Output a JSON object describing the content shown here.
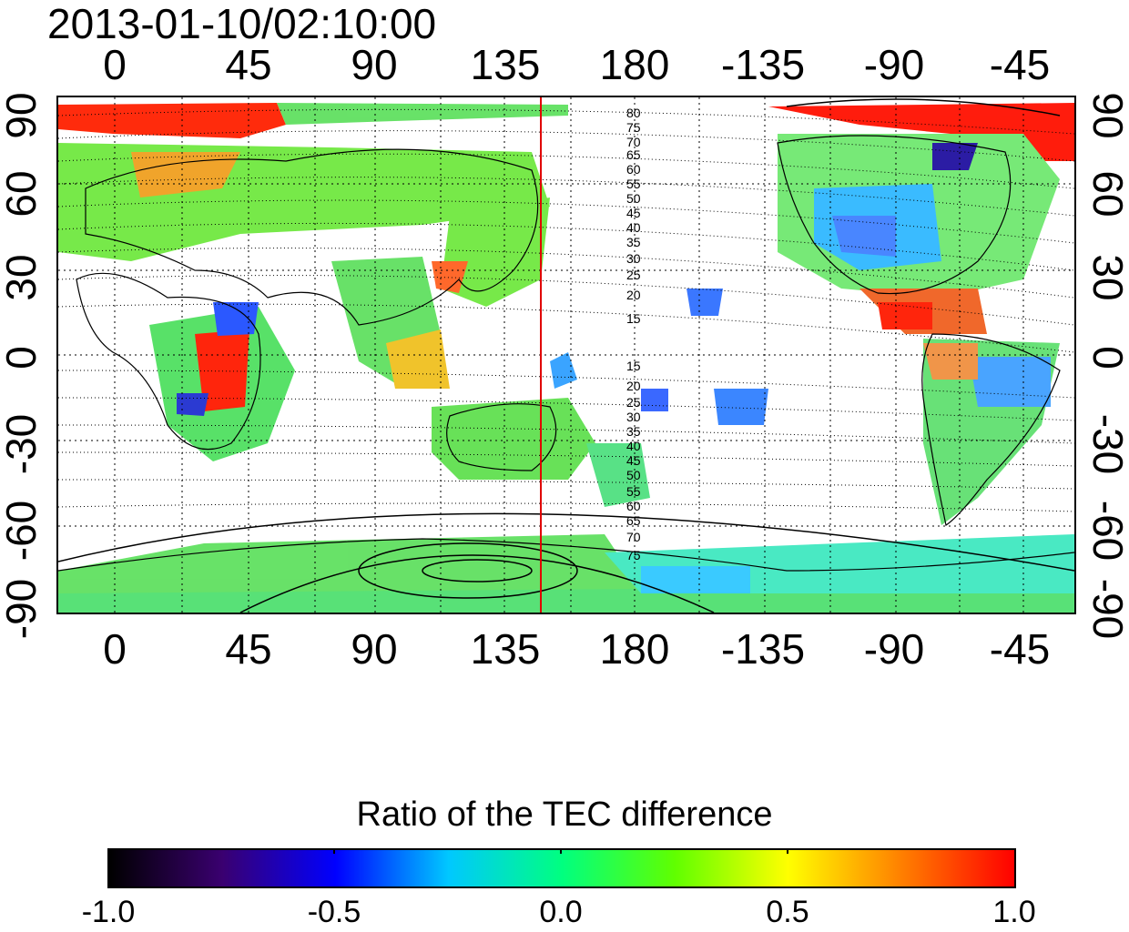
{
  "title": "2013-01-10/02:10:00",
  "axes": {
    "longitude_ticks": [
      "0",
      "45",
      "90",
      "135",
      "180",
      "-135",
      "-90",
      "-45"
    ],
    "latitude_ticks": [
      "90",
      "60",
      "30",
      "0",
      "-30",
      "-60",
      "-90"
    ]
  },
  "map": {
    "contour_labels_upper": [
      "80",
      "75",
      "70",
      "65",
      "60",
      "55",
      "50",
      "45",
      "40",
      "35",
      "30",
      "25",
      "20",
      "15"
    ],
    "contour_labels_lower": [
      "15",
      "20",
      "25",
      "30",
      "35",
      "40",
      "45",
      "50",
      "55",
      "60",
      "65",
      "70",
      "75"
    ],
    "terminator_longitude": 148,
    "terminator_color": "#e00000"
  },
  "colorbar": {
    "title": "Ratio of the TEC difference",
    "tick_labels": [
      "-1.0",
      "-0.5",
      "0.0",
      "0.5",
      "1.0"
    ],
    "colors": [
      "#000000",
      "#3a0070",
      "#0000ff",
      "#00c8ff",
      "#00ff80",
      "#60ff00",
      "#ffff00",
      "#ff8000",
      "#ff0000"
    ]
  }
}
